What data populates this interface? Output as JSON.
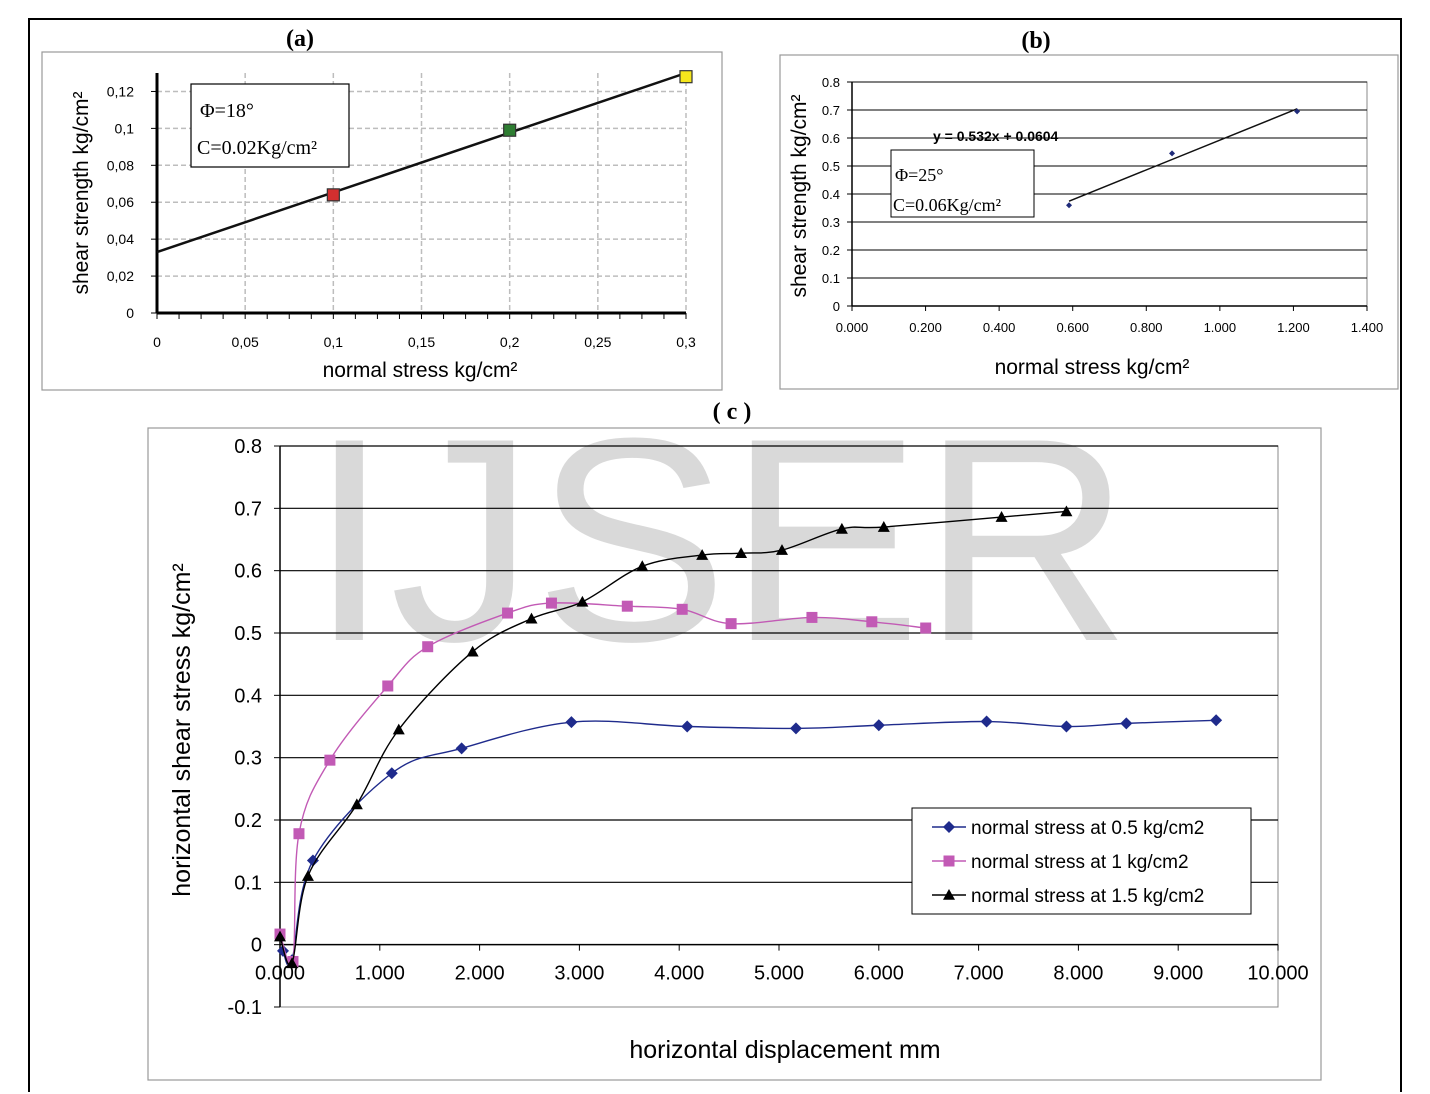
{
  "watermark": "IJSER",
  "chart_data": [
    {
      "type": "scatter",
      "panel_label": "(a)",
      "xlabel": "normal stress kg/cm²",
      "ylabel": "shear strength kg/cm²",
      "xlim": [
        0,
        0.3
      ],
      "ylim": [
        0,
        0.13
      ],
      "x_ticks": [
        "0",
        "0,05",
        "0,1",
        "0,15",
        "0,2",
        "0,25",
        "0,3"
      ],
      "x_tick_values": [
        0,
        0.05,
        0.1,
        0.15,
        0.2,
        0.25,
        0.3
      ],
      "y_ticks": [
        "0",
        "0,02",
        "0,04",
        "0,06",
        "0,08",
        "0,1",
        "0,12"
      ],
      "y_tick_values": [
        0,
        0.02,
        0.04,
        0.06,
        0.08,
        0.1,
        0.12
      ],
      "grid": true,
      "points": [
        {
          "x": 0.1,
          "y": 0.064,
          "color": "#d32f2f"
        },
        {
          "x": 0.2,
          "y": 0.099,
          "color": "#2e7d32"
        },
        {
          "x": 0.3,
          "y": 0.128,
          "color": "#f5e61c"
        }
      ],
      "trendline": {
        "x1": 0,
        "y1": 0.033,
        "x2": 0.3,
        "y2": 0.13
      },
      "annotation": {
        "phi": "Φ=18°",
        "c": "C=0.02Kg/cm²"
      }
    },
    {
      "type": "scatter",
      "panel_label": "(b)",
      "xlabel": "normal stress kg/cm²",
      "ylabel": "shear strength kg/cm²",
      "xlim": [
        0,
        1.4
      ],
      "ylim": [
        0,
        0.8
      ],
      "x_ticks": [
        "0.000",
        "0.200",
        "0.400",
        "0.600",
        "0.800",
        "1.000",
        "1.200",
        "1.400"
      ],
      "x_tick_values": [
        0,
        0.2,
        0.4,
        0.6,
        0.8,
        1.0,
        1.2,
        1.4
      ],
      "y_ticks": [
        "0",
        "0.1",
        "0.2",
        "0.3",
        "0.4",
        "0.5",
        "0.6",
        "0.7",
        "0.8"
      ],
      "y_tick_values": [
        0,
        0.1,
        0.2,
        0.3,
        0.4,
        0.5,
        0.6,
        0.7,
        0.8
      ],
      "grid": "horizontal",
      "points": [
        {
          "x": 0.59,
          "y": 0.36
        },
        {
          "x": 0.87,
          "y": 0.545
        },
        {
          "x": 1.21,
          "y": 0.695
        }
      ],
      "trendline": {
        "x1": 0.59,
        "y1": 0.3743,
        "x2": 1.21,
        "y2": 0.7041
      },
      "equation": "y = 0.532x + 0.0604",
      "annotation": {
        "phi": "Φ=25°",
        "c": "C=0.06Kg/cm²"
      },
      "color": "#1f2b7a"
    },
    {
      "type": "line",
      "panel_label": "( c )",
      "xlabel": "horizontal displacement mm",
      "ylabel": "horizontal shear stress kg/cm²",
      "xlim": [
        0,
        10
      ],
      "ylim": [
        -0.1,
        0.8
      ],
      "x_ticks": [
        "0.000",
        "1.000",
        "2.000",
        "3.000",
        "4.000",
        "5.000",
        "6.000",
        "7.000",
        "8.000",
        "9.000",
        "10.000"
      ],
      "x_tick_values": [
        0,
        1,
        2,
        3,
        4,
        5,
        6,
        7,
        8,
        9,
        10
      ],
      "y_ticks": [
        "-0.1",
        "0",
        "0.1",
        "0.2",
        "0.3",
        "0.4",
        "0.5",
        "0.6",
        "0.7",
        "0.8"
      ],
      "y_tick_values": [
        -0.1,
        0,
        0.1,
        0.2,
        0.3,
        0.4,
        0.5,
        0.6,
        0.7,
        0.8
      ],
      "grid": "horizontal",
      "legend_position": "bottom-right",
      "series": [
        {
          "name": "normal stress at 0.5 kg/cm2",
          "color": "#1f2b8c",
          "marker": "diamond",
          "x": [
            0.03,
            0.12,
            0.33,
            1.12,
            1.82,
            2.92,
            4.08,
            5.17,
            6.0,
            7.08,
            7.88,
            8.48,
            9.38
          ],
          "y": [
            -0.01,
            -0.025,
            0.135,
            0.275,
            0.315,
            0.357,
            0.35,
            0.347,
            0.352,
            0.358,
            0.35,
            0.355,
            0.36
          ]
        },
        {
          "name": "normal stress at 1 kg/cm2",
          "color": "#c25ab5",
          "marker": "square",
          "x": [
            0.0,
            0.13,
            0.19,
            0.5,
            1.08,
            1.48,
            2.28,
            2.72,
            3.48,
            4.03,
            4.52,
            5.33,
            5.93,
            6.47
          ],
          "y": [
            0.017,
            -0.027,
            0.178,
            0.296,
            0.415,
            0.478,
            0.532,
            0.548,
            0.543,
            0.538,
            0.515,
            0.525,
            0.518,
            0.508
          ]
        },
        {
          "name": "normal stress at 1.5 kg/cm2",
          "color": "#000000",
          "marker": "triangle",
          "x": [
            0.0,
            0.12,
            0.28,
            0.77,
            1.19,
            1.93,
            2.52,
            3.03,
            3.63,
            4.23,
            4.62,
            5.03,
            5.63,
            6.05,
            7.23,
            7.88
          ],
          "y": [
            0.013,
            -0.03,
            0.11,
            0.225,
            0.345,
            0.47,
            0.523,
            0.55,
            0.607,
            0.625,
            0.628,
            0.633,
            0.667,
            0.67,
            0.686,
            0.695
          ]
        }
      ]
    }
  ]
}
